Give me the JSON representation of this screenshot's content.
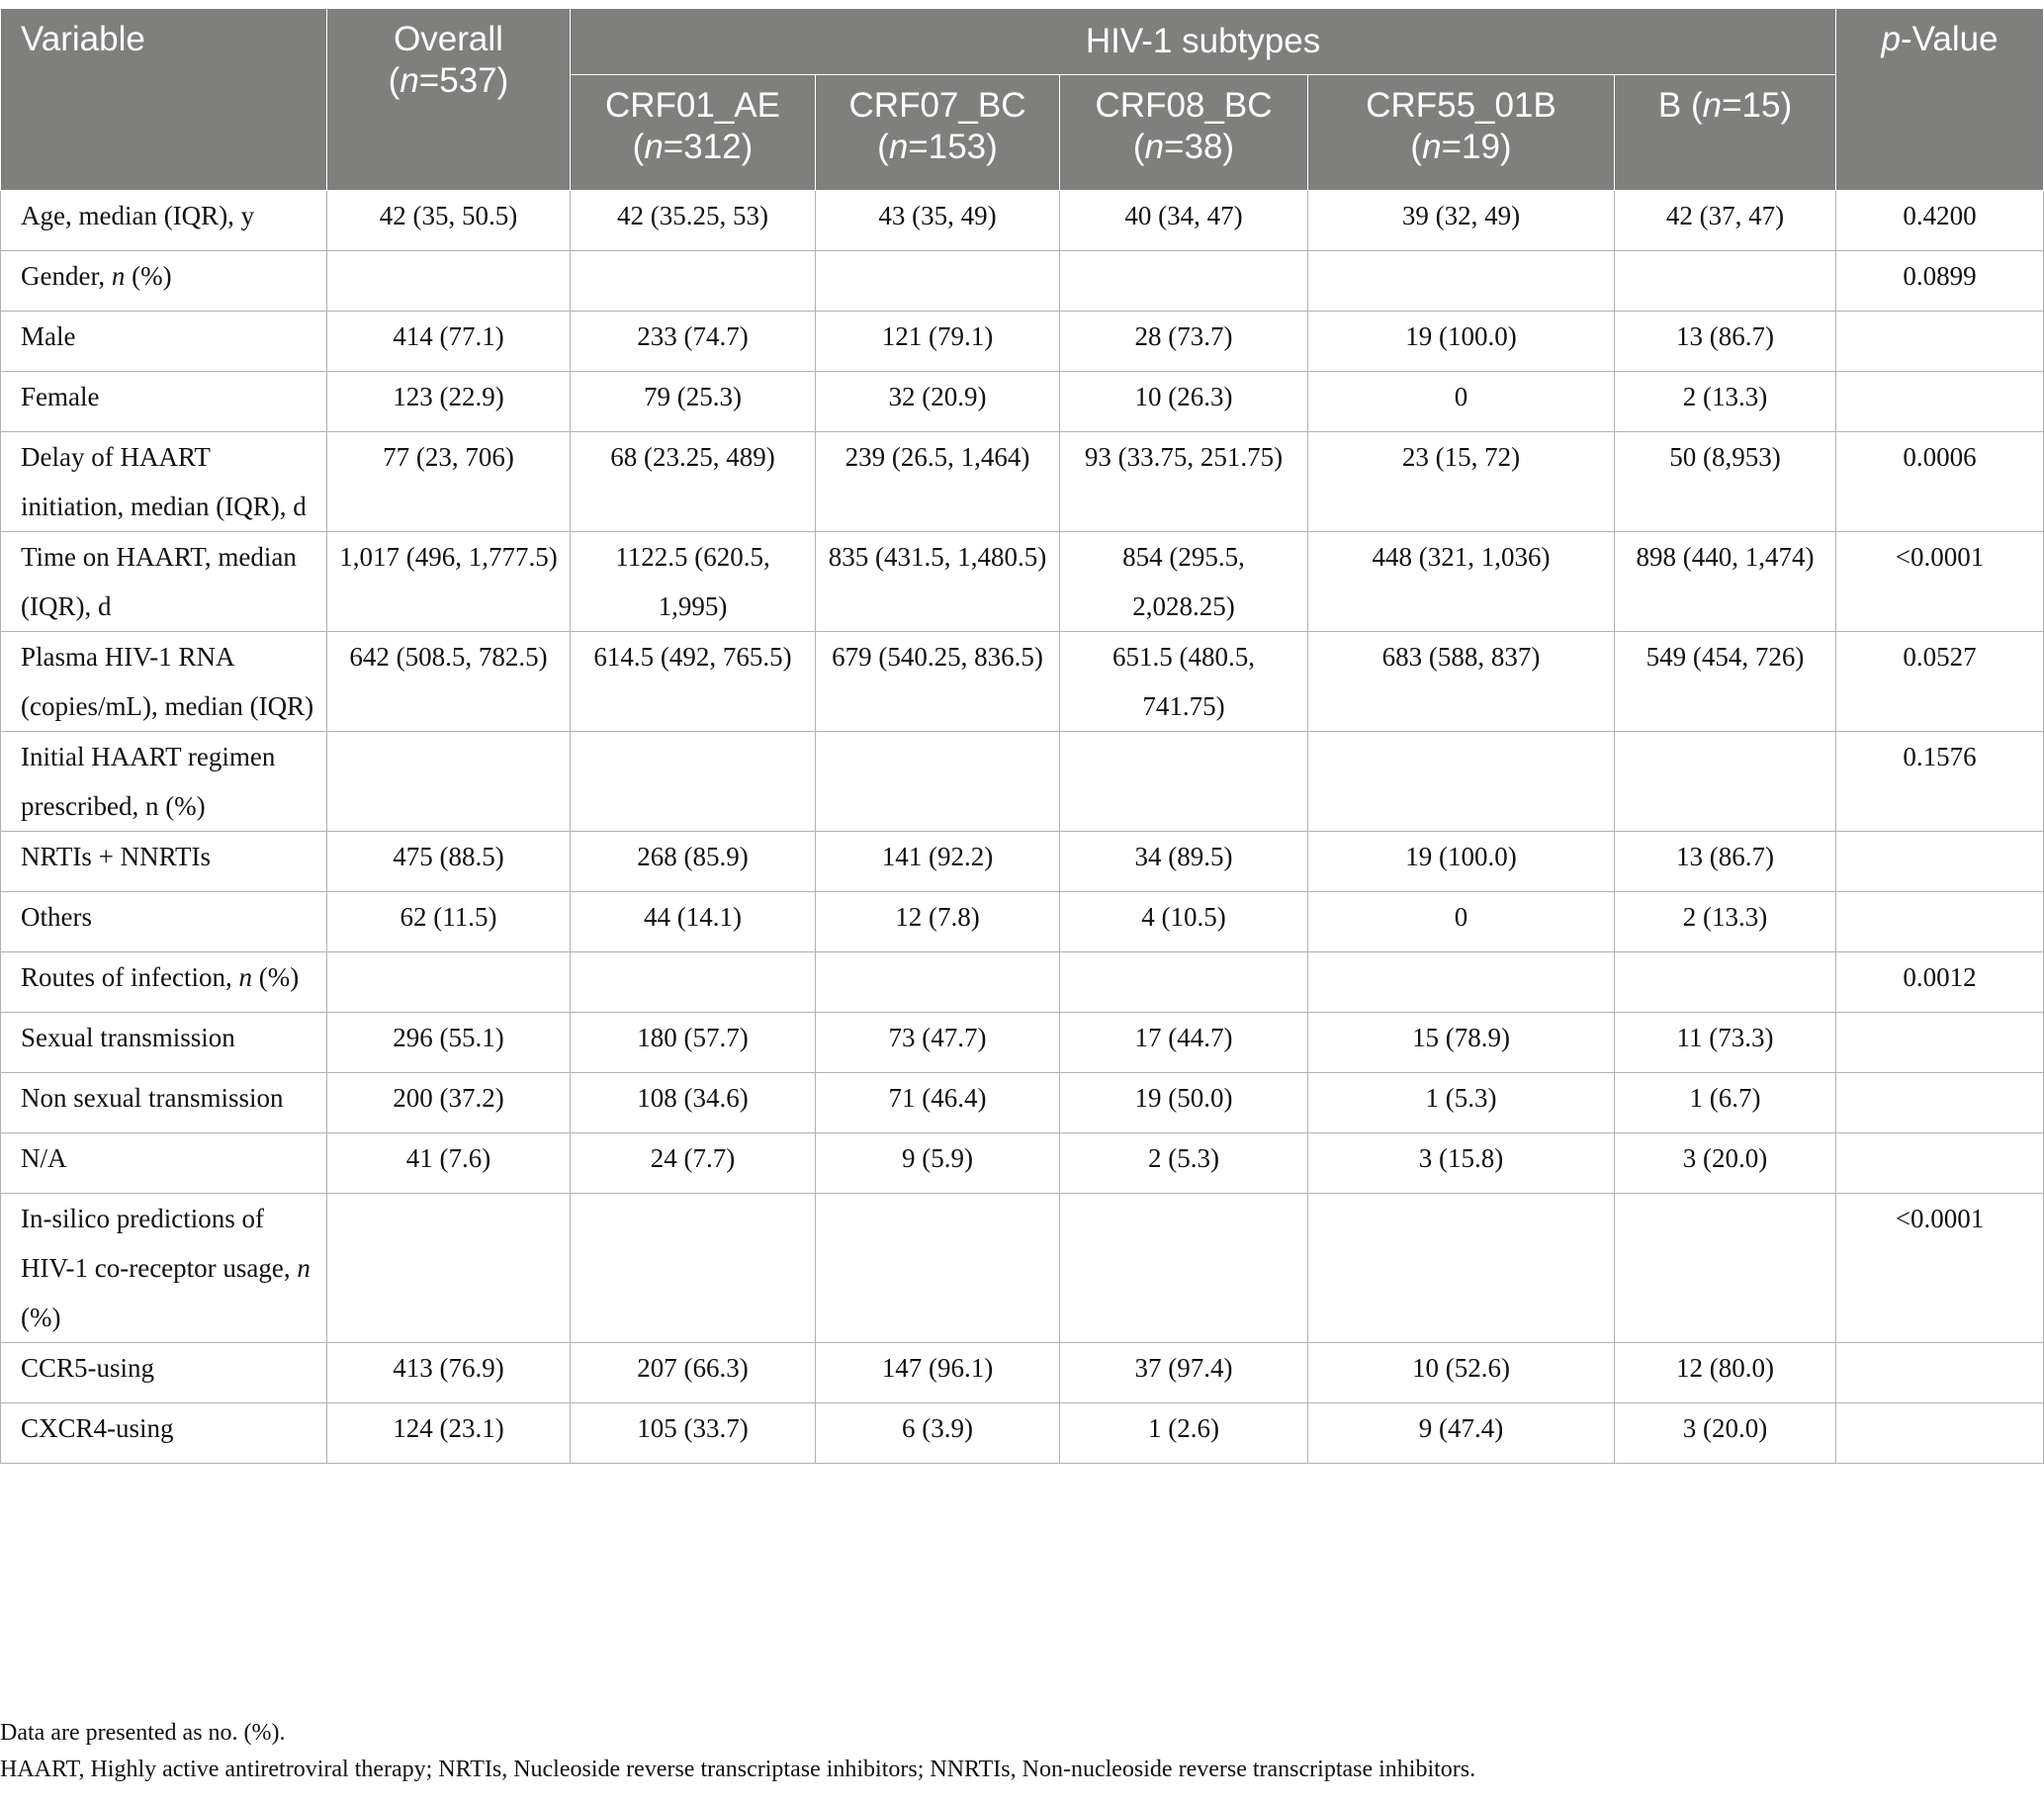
{
  "header": {
    "variable": "Variable",
    "overall": "Overall",
    "overall_n": "(n=537)",
    "group": "HIV-1 subtypes",
    "pvalue": "p-Value",
    "subtypes": [
      "CRF01_AE (n=312)",
      "CRF07_BC (n=153)",
      "CRF08_BC (n=38)",
      "CRF55_01B (n=19)",
      "B (n=15)"
    ]
  },
  "rows": [
    {
      "label": "Age, median (IQR), y",
      "cells": [
        "42 (35, 50.5)",
        "42 (35.25, 53)",
        "43 (35, 49)",
        "40 (34, 47)",
        "39 (32, 49)",
        "42 (37, 47)",
        "0.4200"
      ]
    },
    {
      "label": "Gender, n (%)",
      "cells": [
        "",
        "",
        "",
        "",
        "",
        "",
        "0.0899"
      ]
    },
    {
      "label": "Male",
      "cells": [
        "414 (77.1)",
        "233 (74.7)",
        "121 (79.1)",
        "28 (73.7)",
        "19 (100.0)",
        "13 (86.7)",
        ""
      ]
    },
    {
      "label": "Female",
      "cells": [
        "123 (22.9)",
        "79 (25.3)",
        "32 (20.9)",
        "10 (26.3)",
        "0",
        "2 (13.3)",
        ""
      ]
    },
    {
      "label": "Delay of HAART initiation, median (IQR), d",
      "cells": [
        "77 (23, 706)",
        "68 (23.25, 489)",
        "239 (26.5, 1,464)",
        "93 (33.75, 251.75)",
        "23 (15, 72)",
        "50 (8,953)",
        "0.0006"
      ]
    },
    {
      "label": "Time on HAART, median (IQR), d",
      "cells": [
        "1,017 (496, 1,777.5)",
        "1122.5 (620.5, 1,995)",
        "835 (431.5, 1,480.5)",
        "854 (295.5, 2,028.25)",
        "448 (321, 1,036)",
        "898 (440, 1,474)",
        "<0.0001"
      ]
    },
    {
      "label": "Plasma HIV-1 RNA (copies/mL), median (IQR)",
      "cells": [
        "642 (508.5, 782.5)",
        "614.5 (492, 765.5)",
        "679 (540.25, 836.5)",
        "651.5 (480.5, 741.75)",
        "683 (588, 837)",
        "549 (454, 726)",
        "0.0527"
      ]
    },
    {
      "label": "Initial HAART regimen prescribed, n (%)",
      "cells": [
        "",
        "",
        "",
        "",
        "",
        "",
        "0.1576"
      ]
    },
    {
      "label": "NRTIs + NNRTIs",
      "cells": [
        "475 (88.5)",
        "268 (85.9)",
        "141 (92.2)",
        "34 (89.5)",
        "19 (100.0)",
        "13 (86.7)",
        ""
      ]
    },
    {
      "label": "Others",
      "cells": [
        "62 (11.5)",
        "44 (14.1)",
        "12 (7.8)",
        "4 (10.5)",
        "0",
        "2 (13.3)",
        ""
      ]
    },
    {
      "label": "Routes of infection, n (%)",
      "cells": [
        "",
        "",
        "",
        "",
        "",
        "",
        "0.0012"
      ]
    },
    {
      "label": "Sexual transmission",
      "cells": [
        "296 (55.1)",
        "180 (57.7)",
        "73 (47.7)",
        "17 (44.7)",
        "15 (78.9)",
        "11 (73.3)",
        ""
      ]
    },
    {
      "label": "Non sexual transmission",
      "cells": [
        "200 (37.2)",
        "108 (34.6)",
        "71 (46.4)",
        "19 (50.0)",
        "1 (5.3)",
        "1 (6.7)",
        ""
      ]
    },
    {
      "label": "N/A",
      "cells": [
        "41 (7.6)",
        "24 (7.7)",
        "9 (5.9)",
        "2 (5.3)",
        "3 (15.8)",
        "3 (20.0)",
        ""
      ]
    },
    {
      "label": "In-silico predictions of HIV-1 co-receptor usage, n (%)",
      "cells": [
        "",
        "",
        "",
        "",
        "",
        "",
        "<0.0001"
      ]
    },
    {
      "label": "CCR5-using",
      "cells": [
        "413 (76.9)",
        "207 (66.3)",
        "147 (96.1)",
        "37 (97.4)",
        "10 (52.6)",
        "12 (80.0)",
        ""
      ]
    },
    {
      "label": "CXCR4-using",
      "cells": [
        "124 (23.1)",
        "105 (33.7)",
        "6 (3.9)",
        "1 (2.6)",
        "9 (47.4)",
        "3 (20.0)",
        ""
      ]
    }
  ],
  "footnotes": [
    "Data are presented as no. (%).",
    "HAART, Highly active antiretroviral therapy; NRTIs, Nucleoside reverse transcriptase inhibitors; NNRTIs, Non-nucleoside reverse transcriptase inhibitors."
  ]
}
